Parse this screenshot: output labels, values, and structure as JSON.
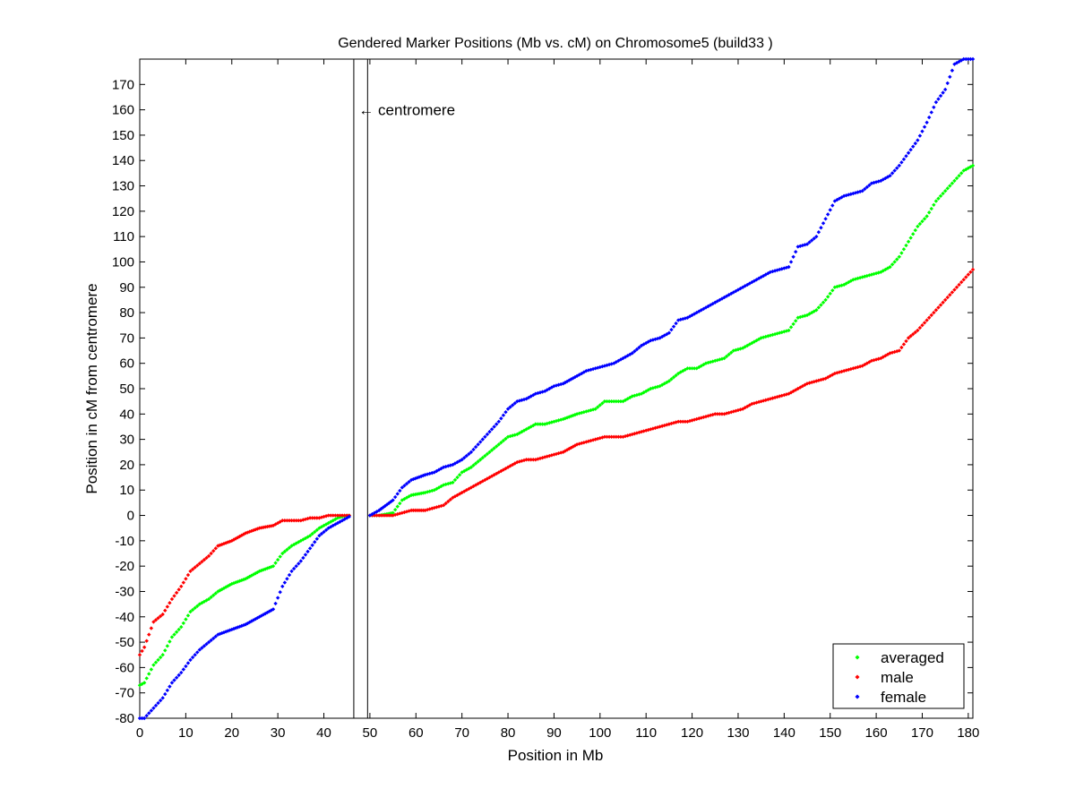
{
  "chart_data": {
    "type": "scatter",
    "title": "Gendered Marker Positions (Mb vs. cM) on Chromosome5 (build33 )",
    "xlabel": "Position in Mb",
    "ylabel": "Position in cM from centromere",
    "xlim": [
      0,
      181
    ],
    "ylim": [
      -80,
      180
    ],
    "xticks": [
      0,
      10,
      20,
      30,
      40,
      50,
      60,
      70,
      80,
      90,
      100,
      110,
      120,
      130,
      140,
      150,
      160,
      170,
      180
    ],
    "yticks": [
      -80,
      -70,
      -60,
      -50,
      -40,
      -30,
      -20,
      -10,
      0,
      10,
      20,
      30,
      40,
      50,
      60,
      70,
      80,
      90,
      100,
      110,
      120,
      130,
      140,
      150,
      160,
      170
    ],
    "grid": false,
    "legend_position": "bottom-right",
    "centromere": {
      "x_start": 46.5,
      "x_end": 49.5,
      "label": "← centromere",
      "label_y": 160
    },
    "series": [
      {
        "name": "averaged",
        "color": "#00ff00",
        "anchors": [
          [
            0,
            -67
          ],
          [
            1,
            -66
          ],
          [
            3,
            -59
          ],
          [
            5,
            -55
          ],
          [
            7,
            -48
          ],
          [
            9,
            -44
          ],
          [
            11,
            -38
          ],
          [
            13,
            -35
          ],
          [
            15,
            -33
          ],
          [
            17,
            -30
          ],
          [
            20,
            -27
          ],
          [
            23,
            -25
          ],
          [
            26,
            -22
          ],
          [
            29,
            -20
          ],
          [
            31,
            -15
          ],
          [
            33,
            -12
          ],
          [
            35,
            -10
          ],
          [
            37,
            -8
          ],
          [
            39,
            -5
          ],
          [
            41,
            -3
          ],
          [
            43,
            -1
          ],
          [
            45,
            0
          ],
          [
            46,
            0
          ],
          [
            50,
            0
          ],
          [
            52,
            0
          ],
          [
            55,
            1
          ],
          [
            57,
            6
          ],
          [
            59,
            8
          ],
          [
            62,
            9
          ],
          [
            64,
            10
          ],
          [
            66,
            12
          ],
          [
            68,
            13
          ],
          [
            70,
            17
          ],
          [
            72,
            19
          ],
          [
            74,
            22
          ],
          [
            76,
            25
          ],
          [
            78,
            28
          ],
          [
            80,
            31
          ],
          [
            82,
            32
          ],
          [
            84,
            34
          ],
          [
            86,
            36
          ],
          [
            88,
            36
          ],
          [
            90,
            37
          ],
          [
            92,
            38
          ],
          [
            95,
            40
          ],
          [
            97,
            41
          ],
          [
            99,
            42
          ],
          [
            101,
            45
          ],
          [
            103,
            45
          ],
          [
            105,
            45
          ],
          [
            107,
            47
          ],
          [
            109,
            48
          ],
          [
            111,
            50
          ],
          [
            113,
            51
          ],
          [
            115,
            53
          ],
          [
            117,
            56
          ],
          [
            119,
            58
          ],
          [
            121,
            58
          ],
          [
            123,
            60
          ],
          [
            125,
            61
          ],
          [
            127,
            62
          ],
          [
            129,
            65
          ],
          [
            131,
            66
          ],
          [
            133,
            68
          ],
          [
            135,
            70
          ],
          [
            137,
            71
          ],
          [
            139,
            72
          ],
          [
            141,
            73
          ],
          [
            143,
            78
          ],
          [
            145,
            79
          ],
          [
            147,
            81
          ],
          [
            149,
            85
          ],
          [
            151,
            90
          ],
          [
            153,
            91
          ],
          [
            155,
            93
          ],
          [
            157,
            94
          ],
          [
            159,
            95
          ],
          [
            161,
            96
          ],
          [
            163,
            98
          ],
          [
            165,
            102
          ],
          [
            167,
            108
          ],
          [
            169,
            114
          ],
          [
            171,
            118
          ],
          [
            173,
            124
          ],
          [
            175,
            128
          ],
          [
            177,
            132
          ],
          [
            179,
            136
          ],
          [
            181,
            138
          ]
        ]
      },
      {
        "name": "male",
        "color": "#ff0000",
        "anchors": [
          [
            0,
            -55
          ],
          [
            1,
            -52
          ],
          [
            3,
            -42
          ],
          [
            5,
            -39
          ],
          [
            7,
            -33
          ],
          [
            9,
            -28
          ],
          [
            11,
            -22
          ],
          [
            13,
            -19
          ],
          [
            15,
            -16
          ],
          [
            17,
            -12
          ],
          [
            20,
            -10
          ],
          [
            23,
            -7
          ],
          [
            26,
            -5
          ],
          [
            29,
            -4
          ],
          [
            31,
            -2
          ],
          [
            33,
            -2
          ],
          [
            35,
            -2
          ],
          [
            37,
            -1
          ],
          [
            39,
            -1
          ],
          [
            41,
            0
          ],
          [
            43,
            0
          ],
          [
            45,
            0
          ],
          [
            46,
            0
          ],
          [
            50,
            0
          ],
          [
            52,
            0
          ],
          [
            55,
            0
          ],
          [
            57,
            1
          ],
          [
            59,
            2
          ],
          [
            62,
            2
          ],
          [
            64,
            3
          ],
          [
            66,
            4
          ],
          [
            68,
            7
          ],
          [
            70,
            9
          ],
          [
            72,
            11
          ],
          [
            74,
            13
          ],
          [
            76,
            15
          ],
          [
            78,
            17
          ],
          [
            80,
            19
          ],
          [
            82,
            21
          ],
          [
            84,
            22
          ],
          [
            86,
            22
          ],
          [
            88,
            23
          ],
          [
            90,
            24
          ],
          [
            92,
            25
          ],
          [
            95,
            28
          ],
          [
            97,
            29
          ],
          [
            99,
            30
          ],
          [
            101,
            31
          ],
          [
            103,
            31
          ],
          [
            105,
            31
          ],
          [
            107,
            32
          ],
          [
            109,
            33
          ],
          [
            111,
            34
          ],
          [
            113,
            35
          ],
          [
            115,
            36
          ],
          [
            117,
            37
          ],
          [
            119,
            37
          ],
          [
            121,
            38
          ],
          [
            123,
            39
          ],
          [
            125,
            40
          ],
          [
            127,
            40
          ],
          [
            129,
            41
          ],
          [
            131,
            42
          ],
          [
            133,
            44
          ],
          [
            135,
            45
          ],
          [
            137,
            46
          ],
          [
            139,
            47
          ],
          [
            141,
            48
          ],
          [
            143,
            50
          ],
          [
            145,
            52
          ],
          [
            147,
            53
          ],
          [
            149,
            54
          ],
          [
            151,
            56
          ],
          [
            153,
            57
          ],
          [
            155,
            58
          ],
          [
            157,
            59
          ],
          [
            159,
            61
          ],
          [
            161,
            62
          ],
          [
            163,
            64
          ],
          [
            165,
            65
          ],
          [
            167,
            70
          ],
          [
            169,
            73
          ],
          [
            171,
            77
          ],
          [
            173,
            81
          ],
          [
            175,
            85
          ],
          [
            177,
            89
          ],
          [
            179,
            93
          ],
          [
            181,
            97
          ]
        ]
      },
      {
        "name": "female",
        "color": "#0000ff",
        "anchors": [
          [
            0,
            -80
          ],
          [
            1,
            -80
          ],
          [
            3,
            -76
          ],
          [
            5,
            -72
          ],
          [
            7,
            -66
          ],
          [
            9,
            -62
          ],
          [
            11,
            -57
          ],
          [
            13,
            -53
          ],
          [
            15,
            -50
          ],
          [
            17,
            -47
          ],
          [
            20,
            -45
          ],
          [
            23,
            -43
          ],
          [
            26,
            -40
          ],
          [
            29,
            -37
          ],
          [
            31,
            -28
          ],
          [
            33,
            -22
          ],
          [
            35,
            -18
          ],
          [
            37,
            -13
          ],
          [
            39,
            -8
          ],
          [
            41,
            -5
          ],
          [
            43,
            -3
          ],
          [
            45,
            -1
          ],
          [
            46,
            0
          ],
          [
            50,
            0
          ],
          [
            52,
            2
          ],
          [
            55,
            6
          ],
          [
            57,
            11
          ],
          [
            59,
            14
          ],
          [
            62,
            16
          ],
          [
            64,
            17
          ],
          [
            66,
            19
          ],
          [
            68,
            20
          ],
          [
            70,
            22
          ],
          [
            72,
            25
          ],
          [
            74,
            29
          ],
          [
            76,
            33
          ],
          [
            78,
            37
          ],
          [
            80,
            42
          ],
          [
            82,
            45
          ],
          [
            84,
            46
          ],
          [
            86,
            48
          ],
          [
            88,
            49
          ],
          [
            90,
            51
          ],
          [
            92,
            52
          ],
          [
            95,
            55
          ],
          [
            97,
            57
          ],
          [
            99,
            58
          ],
          [
            101,
            59
          ],
          [
            103,
            60
          ],
          [
            105,
            62
          ],
          [
            107,
            64
          ],
          [
            109,
            67
          ],
          [
            111,
            69
          ],
          [
            113,
            70
          ],
          [
            115,
            72
          ],
          [
            117,
            77
          ],
          [
            119,
            78
          ],
          [
            121,
            80
          ],
          [
            123,
            82
          ],
          [
            125,
            84
          ],
          [
            127,
            86
          ],
          [
            129,
            88
          ],
          [
            131,
            90
          ],
          [
            133,
            92
          ],
          [
            135,
            94
          ],
          [
            137,
            96
          ],
          [
            139,
            97
          ],
          [
            141,
            98
          ],
          [
            143,
            106
          ],
          [
            145,
            107
          ],
          [
            147,
            110
          ],
          [
            149,
            117
          ],
          [
            151,
            124
          ],
          [
            153,
            126
          ],
          [
            155,
            127
          ],
          [
            157,
            128
          ],
          [
            159,
            131
          ],
          [
            161,
            132
          ],
          [
            163,
            134
          ],
          [
            165,
            138
          ],
          [
            167,
            143
          ],
          [
            169,
            148
          ],
          [
            171,
            155
          ],
          [
            173,
            163
          ],
          [
            175,
            168
          ],
          [
            177,
            178
          ],
          [
            179,
            180
          ],
          [
            181,
            180
          ]
        ]
      }
    ]
  }
}
